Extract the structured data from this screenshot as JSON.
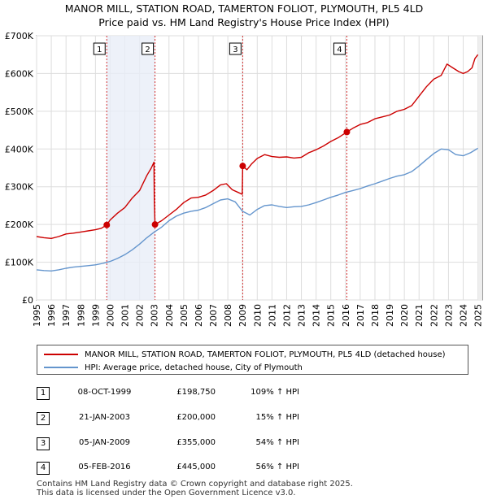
{
  "chart_data": {
    "type": "line",
    "title": "MANOR MILL, STATION ROAD, TAMERTON FOLIOT, PLYMOUTH, PL5 4LD",
    "subtitle": "Price paid vs. HM Land Registry's House Price Index (HPI)",
    "xlabel": "",
    "ylabel": "",
    "xlim": [
      1995,
      2025.3
    ],
    "ylim": [
      0,
      700000
    ],
    "x_ticks": [
      1995,
      1996,
      1997,
      1998,
      1999,
      2000,
      2001,
      2002,
      2003,
      2004,
      2005,
      2006,
      2007,
      2008,
      2009,
      2010,
      2011,
      2012,
      2013,
      2014,
      2015,
      2016,
      2017,
      2018,
      2019,
      2020,
      2021,
      2022,
      2023,
      2024,
      2025
    ],
    "y_ticks": [
      {
        "value": 0,
        "label": "£0"
      },
      {
        "value": 100000,
        "label": "£100K"
      },
      {
        "value": 200000,
        "label": "£200K"
      },
      {
        "value": 300000,
        "label": "£300K"
      },
      {
        "value": 400000,
        "label": "£400K"
      },
      {
        "value": 500000,
        "label": "£500K"
      },
      {
        "value": 600000,
        "label": "£600K"
      },
      {
        "value": 700000,
        "label": "£700K"
      }
    ],
    "grid": true,
    "legend_position": "below",
    "series": [
      {
        "name": "MANOR MILL, STATION ROAD, TAMERTON FOLIOT, PLYMOUTH, PL5 4LD (detached house)",
        "color": "#cc0000",
        "x": [
          1995.0,
          1995.5,
          1996.0,
          1996.5,
          1997.0,
          1997.5,
          1998.0,
          1998.5,
          1999.0,
          1999.4,
          1999.77,
          2000.0,
          2000.5,
          2001.0,
          2001.5,
          2002.0,
          2002.5,
          2002.8,
          2002.98,
          2003.0,
          2003.05,
          2003.5,
          2004.0,
          2004.5,
          2005.0,
          2005.5,
          2006.0,
          2006.5,
          2007.0,
          2007.5,
          2007.9,
          2008.3,
          2008.7,
          2008.98,
          2009.01,
          2009.3,
          2009.6,
          2010.0,
          2010.5,
          2011.0,
          2011.5,
          2012.0,
          2012.5,
          2013.0,
          2013.5,
          2014.0,
          2014.5,
          2015.0,
          2015.5,
          2016.09,
          2016.5,
          2017.0,
          2017.5,
          2018.0,
          2018.5,
          2019.0,
          2019.5,
          2020.0,
          2020.5,
          2021.0,
          2021.5,
          2022.0,
          2022.5,
          2022.9,
          2023.3,
          2023.7,
          2024.0,
          2024.3,
          2024.6,
          2024.8,
          2025.0
        ],
        "values": [
          168000,
          165000,
          163000,
          168000,
          175000,
          177000,
          180000,
          183000,
          186000,
          190000,
          198750,
          212000,
          230000,
          245000,
          270000,
          290000,
          330000,
          350000,
          365000,
          265000,
          200000,
          210000,
          225000,
          240000,
          258000,
          270000,
          272000,
          278000,
          290000,
          305000,
          308000,
          292000,
          285000,
          280000,
          355000,
          345000,
          360000,
          375000,
          385000,
          380000,
          378000,
          379000,
          376000,
          378000,
          390000,
          398000,
          408000,
          420000,
          430000,
          445000,
          455000,
          465000,
          470000,
          480000,
          485000,
          490000,
          500000,
          505000,
          515000,
          540000,
          565000,
          585000,
          595000,
          625000,
          615000,
          605000,
          600000,
          605000,
          615000,
          640000,
          650000
        ]
      },
      {
        "name": "HPI: Average price, detached house, City of Plymouth",
        "color": "#6495cd",
        "x": [
          1995.0,
          1995.5,
          1996.0,
          1996.5,
          1997.0,
          1997.5,
          1998.0,
          1998.5,
          1999.0,
          1999.5,
          2000.0,
          2000.5,
          2001.0,
          2001.5,
          2002.0,
          2002.5,
          2003.0,
          2003.5,
          2004.0,
          2004.5,
          2005.0,
          2005.5,
          2006.0,
          2006.5,
          2007.0,
          2007.5,
          2008.0,
          2008.5,
          2009.0,
          2009.5,
          2010.0,
          2010.5,
          2011.0,
          2011.5,
          2012.0,
          2012.5,
          2013.0,
          2013.5,
          2014.0,
          2014.5,
          2015.0,
          2015.5,
          2016.0,
          2016.5,
          2017.0,
          2017.5,
          2018.0,
          2018.5,
          2019.0,
          2019.5,
          2020.0,
          2020.5,
          2021.0,
          2021.5,
          2022.0,
          2022.5,
          2023.0,
          2023.5,
          2024.0,
          2024.5,
          2025.0
        ],
        "values": [
          80000,
          78000,
          77000,
          80000,
          84000,
          87000,
          89000,
          91000,
          93000,
          97000,
          102000,
          110000,
          120000,
          133000,
          148000,
          165000,
          180000,
          193000,
          210000,
          222000,
          230000,
          235000,
          238000,
          245000,
          255000,
          265000,
          268000,
          260000,
          235000,
          225000,
          240000,
          250000,
          252000,
          248000,
          245000,
          247000,
          248000,
          252000,
          258000,
          265000,
          272000,
          278000,
          285000,
          290000,
          295000,
          302000,
          308000,
          315000,
          322000,
          328000,
          332000,
          340000,
          355000,
          372000,
          388000,
          400000,
          398000,
          385000,
          382000,
          390000,
          402000
        ]
      }
    ],
    "sales": [
      {
        "label": "1",
        "x": 1999.77,
        "value": 198750
      },
      {
        "label": "2",
        "x": 2003.05,
        "value": 200000
      },
      {
        "label": "3",
        "x": 2009.01,
        "value": 355000
      },
      {
        "label": "4",
        "x": 2016.09,
        "value": 445000
      }
    ]
  },
  "legend": [
    {
      "label": "MANOR MILL, STATION ROAD, TAMERTON FOLIOT, PLYMOUTH, PL5 4LD (detached house)",
      "color": "#cc0000"
    },
    {
      "label": "HPI: Average price, detached house, City of Plymouth",
      "color": "#6495cd"
    }
  ],
  "table": [
    {
      "num": "1",
      "date": "08-OCT-1999",
      "price": "£198,750",
      "hpi": "109% ↑ HPI"
    },
    {
      "num": "2",
      "date": "21-JAN-2003",
      "price": "£200,000",
      "hpi": "15% ↑ HPI"
    },
    {
      "num": "3",
      "date": "05-JAN-2009",
      "price": "£355,000",
      "hpi": "54% ↑ HPI"
    },
    {
      "num": "4",
      "date": "05-FEB-2016",
      "price": "£445,000",
      "hpi": "56% ↑ HPI"
    }
  ],
  "footer": {
    "line1": "Contains HM Land Registry data © Crown copyright and database right 2025.",
    "line2": "This data is licensed under the Open Government Licence v3.0."
  }
}
